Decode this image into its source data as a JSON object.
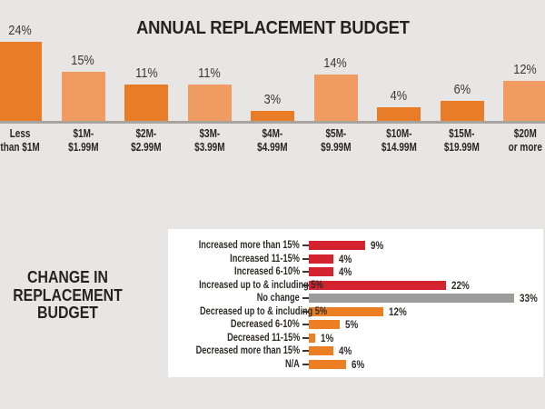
{
  "background_color": "#e7e6e4",
  "colors": {
    "orange_dark": "#e97c26",
    "orange_light": "#f09b61",
    "red": "#d2232e",
    "gray_bar": "#9d9c9a",
    "orange_bottom": "#ec7f24",
    "axis_line": "#a7a4a0",
    "panel_background": "#ffffff",
    "text": "#2a2625"
  },
  "annual_chart": {
    "title": "ANNUAL REPLACEMENT BUDGET"
  },
  "change_chart": {
    "heading": "CHANGE IN\nREPLACEMENT\nBUDGET"
  },
  "chart_data": [
    {
      "type": "bar",
      "orientation": "vertical",
      "title": "ANNUAL REPLACEMENT BUDGET",
      "categories": [
        "Less\nthan $1M",
        "$1M-\n$1.99M",
        "$2M-\n$2.99M",
        "$3M-\n$3.99M",
        "$4M-\n$4.99M",
        "$5M-\n$9.99M",
        "$10M-\n$14.99M",
        "$15M-\n$19.99M",
        "$20M\nor more"
      ],
      "values": [
        24,
        15,
        11,
        11,
        3,
        14,
        4,
        6,
        12
      ],
      "unit": "%",
      "data_labels": [
        "24%",
        "15%",
        "11%",
        "11%",
        "3%",
        "14%",
        "4%",
        "6%",
        "12%"
      ],
      "bar_colors": [
        "#e97c26",
        "#f09b61",
        "#e97c26",
        "#f09b61",
        "#e97c26",
        "#f09b61",
        "#e97c26",
        "#e97c26",
        "#f09b61"
      ],
      "ylim": [
        0,
        25
      ],
      "grid": false,
      "legend": false,
      "xlabel": "",
      "ylabel": ""
    },
    {
      "type": "bar",
      "orientation": "horizontal",
      "title": "CHANGE IN REPLACEMENT BUDGET",
      "categories": [
        "Increased more than 15%",
        "Increased 11-15%",
        "Increased 6-10%",
        "Increased up to & including 5%",
        "No change",
        "Decreased up to & including 5%",
        "Decreased 6-10%",
        "Decreased 11-15%",
        "Decreased more than 15%",
        "N/A"
      ],
      "values": [
        9,
        4,
        4,
        22,
        33,
        12,
        5,
        1,
        4,
        6
      ],
      "unit": "%",
      "data_labels": [
        "9%",
        "4%",
        "4%",
        "22%",
        "33%",
        "12%",
        "5%",
        "1%",
        "4%",
        "6%"
      ],
      "bar_colors": [
        "#d2232e",
        "#d2232e",
        "#d2232e",
        "#d2232e",
        "#9d9c9a",
        "#ec7f24",
        "#ec7f24",
        "#ec7f24",
        "#ec7f24",
        "#ec7f24"
      ],
      "xlim": [
        0,
        33
      ],
      "grid": false,
      "legend": false,
      "xlabel": "",
      "ylabel": ""
    }
  ]
}
